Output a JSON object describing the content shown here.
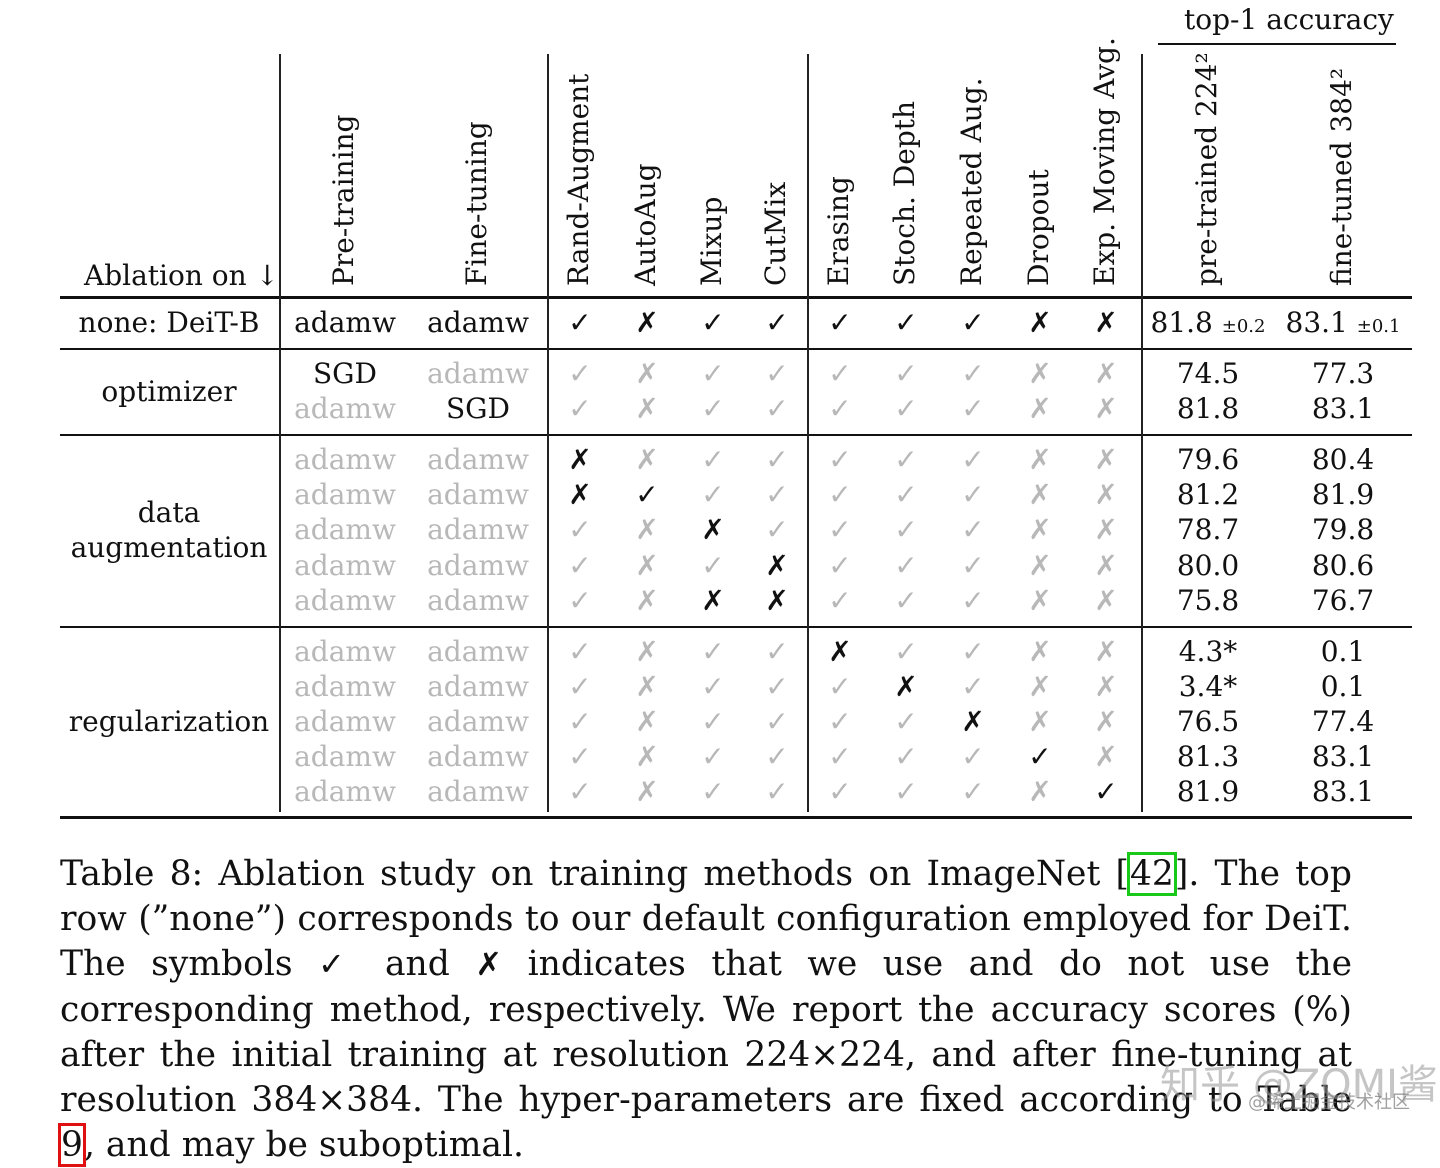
{
  "header": {
    "group_label": "top-1 accuracy",
    "ablation_label": "Ablation on ↓",
    "columns": [
      "Pre-training",
      "Fine-tuning",
      "Rand-Augment",
      "AutoAug",
      "Mixup",
      "CutMix",
      "Erasing",
      "Stoch. Depth",
      "Repeated Aug.",
      "Dropout",
      "Exp. Moving Avg.",
      "pre-trained 224²",
      "fine-tuned 384²"
    ]
  },
  "symbols": {
    "yes": "✓",
    "no": "✗"
  },
  "baseline": {
    "label": "none: DeiT-B",
    "pretrain": "adamw",
    "finetune": "adamw",
    "flags": [
      1,
      0,
      1,
      1,
      1,
      1,
      1,
      0,
      0
    ],
    "acc_pre": "81.8",
    "acc_pre_pm": "±0.2",
    "acc_fine": "83.1",
    "acc_fine_pm": "±0.1"
  },
  "groups": [
    {
      "label_lines": [
        "optimizer"
      ],
      "rows": [
        {
          "pretrain": "SGD",
          "finetune": "adamw",
          "pre_changed": true,
          "fine_changed": false,
          "changed": [],
          "acc_pre": "74.5",
          "acc_fine": "77.3"
        },
        {
          "pretrain": "adamw",
          "finetune": "SGD",
          "pre_changed": false,
          "fine_changed": true,
          "changed": [],
          "acc_pre": "81.8",
          "acc_fine": "83.1"
        }
      ]
    },
    {
      "label_lines": [
        "data",
        "augmentation"
      ],
      "rows": [
        {
          "pretrain": "adamw",
          "finetune": "adamw",
          "pre_changed": false,
          "fine_changed": false,
          "changed": [
            0
          ],
          "acc_pre": "79.6",
          "acc_fine": "80.4"
        },
        {
          "pretrain": "adamw",
          "finetune": "adamw",
          "pre_changed": false,
          "fine_changed": false,
          "changed": [
            0,
            1
          ],
          "acc_pre": "81.2",
          "acc_fine": "81.9"
        },
        {
          "pretrain": "adamw",
          "finetune": "adamw",
          "pre_changed": false,
          "fine_changed": false,
          "changed": [
            2
          ],
          "acc_pre": "78.7",
          "acc_fine": "79.8"
        },
        {
          "pretrain": "adamw",
          "finetune": "adamw",
          "pre_changed": false,
          "fine_changed": false,
          "changed": [
            3
          ],
          "acc_pre": "80.0",
          "acc_fine": "80.6"
        },
        {
          "pretrain": "adamw",
          "finetune": "adamw",
          "pre_changed": false,
          "fine_changed": false,
          "changed": [
            2,
            3
          ],
          "acc_pre": "75.8",
          "acc_fine": "76.7"
        }
      ]
    },
    {
      "label_lines": [
        "regularization"
      ],
      "rows": [
        {
          "pretrain": "adamw",
          "finetune": "adamw",
          "pre_changed": false,
          "fine_changed": false,
          "changed": [
            4
          ],
          "acc_pre": "4.3*",
          "acc_fine": "0.1"
        },
        {
          "pretrain": "adamw",
          "finetune": "adamw",
          "pre_changed": false,
          "fine_changed": false,
          "changed": [
            5
          ],
          "acc_pre": "3.4*",
          "acc_fine": "0.1"
        },
        {
          "pretrain": "adamw",
          "finetune": "adamw",
          "pre_changed": false,
          "fine_changed": false,
          "changed": [
            6
          ],
          "acc_pre": "76.5",
          "acc_fine": "77.4"
        },
        {
          "pretrain": "adamw",
          "finetune": "adamw",
          "pre_changed": false,
          "fine_changed": false,
          "changed": [
            7
          ],
          "acc_pre": "81.3",
          "acc_fine": "83.1"
        },
        {
          "pretrain": "adamw",
          "finetune": "adamw",
          "pre_changed": false,
          "fine_changed": false,
          "changed": [
            8
          ],
          "acc_pre": "81.9",
          "acc_fine": "83.1"
        }
      ]
    }
  ],
  "caption": {
    "part1": "Table 8:  Ablation study on training methods on ImageNet [",
    "ref1": "42",
    "part2": "].  The top row (”none”) corresponds to our default configuration employed for DeiT. The symbols ",
    "sym_yes": "✓",
    "part3": " and ",
    "sym_no": "✗",
    "part4": " indicates that we use and do not use the corresponding method, respectively. We report the accuracy scores (%) after the initial training at resolution 224×224, and after fine-tuning at resolution 384×384. The hyper-parameters are fixed according to Table ",
    "ref2": "9",
    "part5": ", and may be suboptimal."
  },
  "watermark": {
    "main": "知乎 @ZOMI酱",
    "sub": "@稀土掘金技术社区"
  }
}
